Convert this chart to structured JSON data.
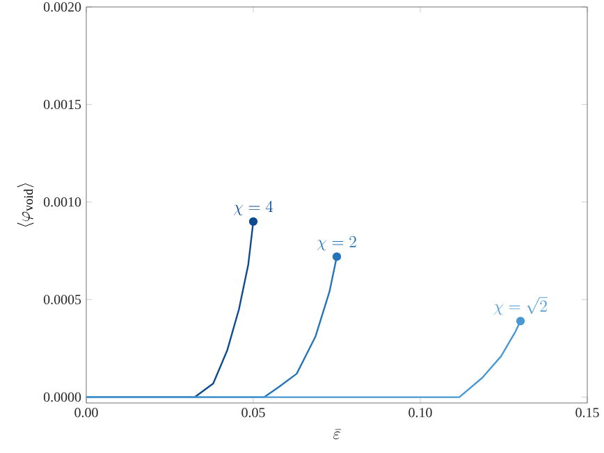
{
  "chart_data": {
    "type": "line",
    "xlabel": "\\bar{\\varepsilon}",
    "ylabel": "\\langle \\varphi_{\\mathrm{void}} \\rangle",
    "xlim": [
      0,
      0.15
    ],
    "ylim": [
      -3e-05,
      0.002
    ],
    "xticks": [
      {
        "value": 0,
        "label": "0.00"
      },
      {
        "value": 0.05,
        "label": "0.05"
      },
      {
        "value": 0.1,
        "label": "0.10"
      },
      {
        "value": 0.15,
        "label": "0.15"
      }
    ],
    "yticks": [
      {
        "value": 0,
        "label": "0.0000"
      },
      {
        "value": 0.0005,
        "label": "0.0005"
      },
      {
        "value": 0.001,
        "label": "0.0010"
      },
      {
        "value": 0.0015,
        "label": "0.0015"
      },
      {
        "value": 0.002,
        "label": "0.0020"
      }
    ],
    "grid": false,
    "line_style": "solid",
    "series": [
      {
        "name": "\\chi = 4",
        "color": "#0d4a8f",
        "x": [
          0,
          0.0297,
          0.0325,
          0.038,
          0.0422,
          0.0457,
          0.0485,
          0.05
        ],
        "values": [
          0,
          0,
          0,
          7e-05,
          0.00024,
          0.00045,
          0.00068,
          0.0009
        ]
      },
      {
        "name": "\\chi = 2",
        "color": "#2474b8",
        "x": [
          0,
          0.0464,
          0.0533,
          0.0575,
          0.063,
          0.0686,
          0.0728,
          0.075
        ],
        "values": [
          0,
          0,
          0,
          5e-05,
          0.00012,
          0.00031,
          0.00054,
          0.00072
        ]
      },
      {
        "name": "\\chi = \\sqrt{2}",
        "color": "#4a98d3",
        "x": [
          0,
          0.0992,
          0.1117,
          0.1186,
          0.1242,
          0.1283,
          0.13
        ],
        "values": [
          0,
          0,
          0,
          0.0001,
          0.00021,
          0.00033,
          0.00039
        ]
      }
    ]
  }
}
